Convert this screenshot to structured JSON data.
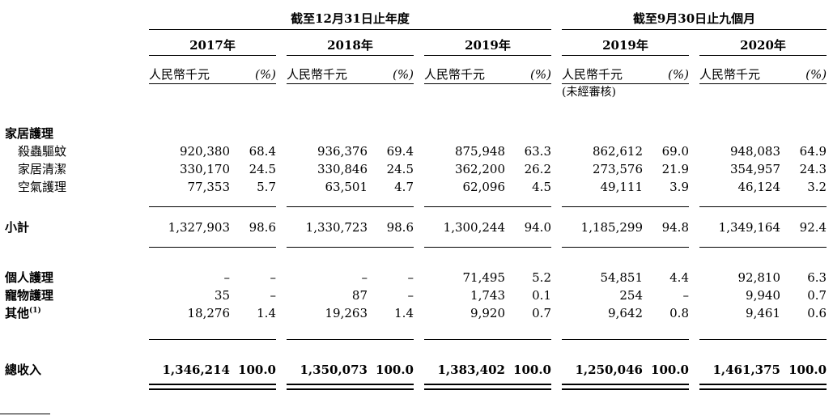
{
  "document": {
    "background": "#ffffff",
    "text_color": "#000000"
  },
  "table": {
    "period_groups": [
      {
        "label": "截至12月31日止年度"
      },
      {
        "label": "截至9月30日止九個月"
      }
    ],
    "year_headers": [
      "2017年",
      "2018年",
      "2019年",
      "2019年",
      "2020年"
    ],
    "subheaders": {
      "unit": "人民幣千元",
      "percent": "(%)",
      "unaudited_note": "(未經審核)"
    },
    "rows": [
      {
        "type": "spacer-lg"
      },
      {
        "type": "section",
        "id": "household-care",
        "label": "家居護理",
        "bold_label": true
      },
      {
        "type": "data",
        "id": "insecticide-repellent",
        "label": "殺蟲驅蚊",
        "indent": 1,
        "cells": [
          "920,380",
          "68.4",
          "936,376",
          "69.4",
          "875,948",
          "63.3",
          "862,612",
          "69.0",
          "948,083",
          "64.9"
        ]
      },
      {
        "type": "data",
        "id": "household-cleaning",
        "label": "家居清潔",
        "indent": 1,
        "cells": [
          "330,170",
          "24.5",
          "330,846",
          "24.5",
          "362,200",
          "26.2",
          "273,576",
          "21.9",
          "354,957",
          "24.3"
        ]
      },
      {
        "type": "data",
        "id": "air-care",
        "label": "空氣護理",
        "indent": 1,
        "cells": [
          "77,353",
          "5.7",
          "63,501",
          "4.7",
          "62,096",
          "4.5",
          "49,111",
          "3.9",
          "46,124",
          "3.2"
        ]
      },
      {
        "type": "rule"
      },
      {
        "type": "data",
        "id": "subtotal",
        "label": "小計",
        "bold_label": true,
        "cells": [
          "1,327,903",
          "98.6",
          "1,330,723",
          "98.6",
          "1,300,244",
          "94.0",
          "1,185,299",
          "94.8",
          "1,349,164",
          "92.4"
        ]
      },
      {
        "type": "rule"
      },
      {
        "type": "spacer-sm"
      },
      {
        "type": "data",
        "id": "personal-care",
        "label": "個人護理",
        "bold_label": true,
        "cells": [
          "–",
          "–",
          "–",
          "–",
          "71,495",
          "5.2",
          "54,851",
          "4.4",
          "92,810",
          "6.3"
        ]
      },
      {
        "type": "data",
        "id": "pet-care",
        "label": "寵物護理",
        "bold_label": true,
        "cells": [
          "35",
          "–",
          "87",
          "–",
          "1,743",
          "0.1",
          "254",
          "–",
          "9,940",
          "0.7"
        ]
      },
      {
        "type": "data",
        "id": "others",
        "label": "其他",
        "sup": "(1)",
        "bold_label": true,
        "cells": [
          "18,276",
          "1.4",
          "19,263",
          "1.4",
          "9,920",
          "0.7",
          "9,642",
          "0.8",
          "9,461",
          "0.6"
        ]
      },
      {
        "type": "rule-wide"
      },
      {
        "type": "spacer-xs"
      },
      {
        "type": "data",
        "id": "total-revenue",
        "label": "總收入",
        "bold_label": true,
        "bold_values": true,
        "cells": [
          "1,346,214",
          "100.0",
          "1,350,073",
          "100.0",
          "1,383,402",
          "100.0",
          "1,250,046",
          "100.0",
          "1,461,375",
          "100.0"
        ]
      },
      {
        "type": "double-rule"
      }
    ]
  }
}
